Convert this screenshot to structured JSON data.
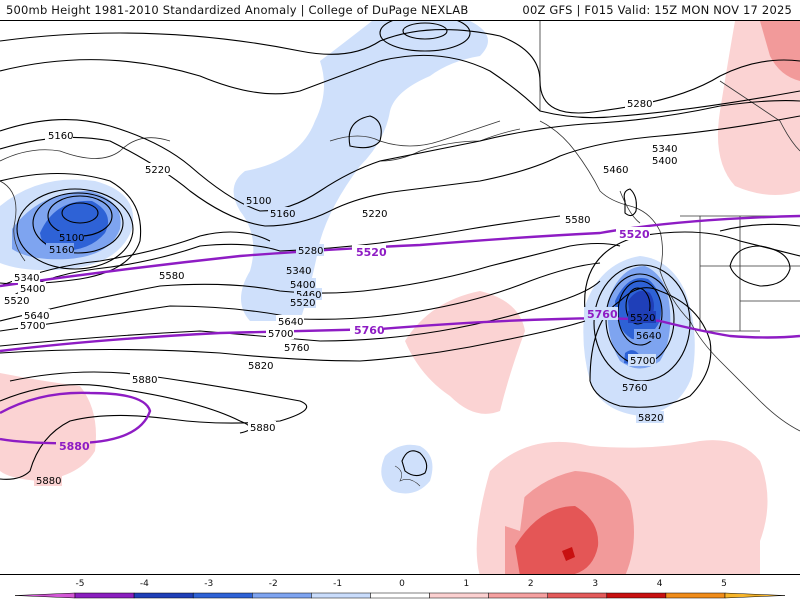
{
  "header": {
    "title_left": "500mb Height 1981-2010 Standardized Anomaly | College of DuPage NEXLAB",
    "title_right": "00Z GFS | F015 Valid: 15Z MON NOV 17 2025"
  },
  "contours": {
    "black_labels": [
      {
        "text": "5160"
      },
      {
        "text": "5220"
      },
      {
        "text": "5100"
      },
      {
        "text": "5160"
      },
      {
        "text": "5340"
      },
      {
        "text": "5400"
      },
      {
        "text": "5520"
      },
      {
        "text": "5640"
      },
      {
        "text": "5700"
      },
      {
        "text": "5100"
      },
      {
        "text": "5160"
      },
      {
        "text": "5220"
      },
      {
        "text": "5280"
      },
      {
        "text": "5340"
      },
      {
        "text": "5400"
      },
      {
        "text": "5460"
      },
      {
        "text": "5520"
      },
      {
        "text": "5580"
      },
      {
        "text": "5640"
      },
      {
        "text": "5700"
      },
      {
        "text": "5760"
      },
      {
        "text": "5820"
      },
      {
        "text": "5880"
      },
      {
        "text": "5880"
      },
      {
        "text": "5880"
      },
      {
        "text": "5280"
      },
      {
        "text": "5340"
      },
      {
        "text": "5400"
      },
      {
        "text": "5460"
      },
      {
        "text": "5580"
      },
      {
        "text": "5520"
      },
      {
        "text": "5640"
      },
      {
        "text": "5700"
      },
      {
        "text": "5760"
      },
      {
        "text": "5820"
      }
    ],
    "purple_labels": [
      {
        "text": "5520"
      },
      {
        "text": "5760"
      },
      {
        "text": "5880"
      },
      {
        "text": "5520"
      },
      {
        "text": "5760"
      }
    ]
  },
  "legend": {
    "ticks": [
      "-5",
      "-4",
      "-3",
      "-2",
      "-1",
      "0",
      "1",
      "2",
      "3",
      "4",
      "5"
    ],
    "colors": [
      "#d357d6",
      "#8a1fbf",
      "#1f3fb8",
      "#2e62d6",
      "#7ea4f0",
      "#c9dcfb",
      "#ffffff",
      "#fbd0d0",
      "#f5a0a0",
      "#e35a5a",
      "#c81010",
      "#f08c1a",
      "#f7b52a"
    ]
  },
  "colors": {
    "neg_light": "#cfe0fb",
    "neg_mid": "#7ea4f0",
    "neg_strong": "#2e62d6",
    "pos_light": "#fbd3d3",
    "pos_mid": "#f29a9a",
    "pos_strong": "#e45656",
    "pos_dark": "#c81010",
    "contour_purple": "#8e1cc4"
  }
}
